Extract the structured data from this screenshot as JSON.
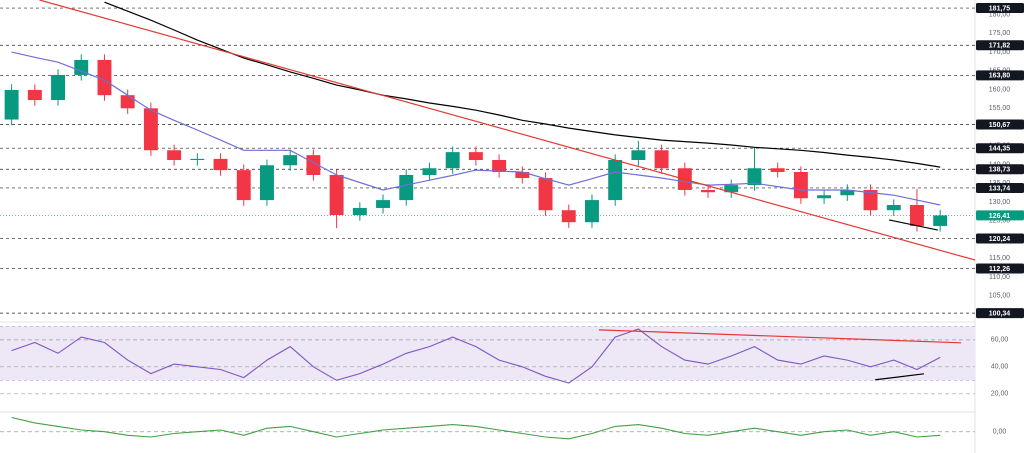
{
  "chart_data": [
    {
      "type": "candlestick",
      "xlim": [
        -0.5,
        41.5
      ],
      "ylim": [
        98.5,
        183.9
      ],
      "yticks": [
        {
          "value": 180,
          "label": "180,00"
        },
        {
          "value": 175,
          "label": "175,00"
        },
        {
          "value": 170,
          "label": "170,00"
        },
        {
          "value": 165,
          "label": "165,00"
        },
        {
          "value": 160,
          "label": "160,00"
        },
        {
          "value": 155,
          "label": "155,00"
        },
        {
          "value": 150,
          "label": "150,00"
        },
        {
          "value": 145,
          "label": "145,00"
        },
        {
          "value": 140,
          "label": "140,00"
        },
        {
          "value": 135,
          "label": "135,00"
        },
        {
          "value": 130,
          "label": "130,00"
        },
        {
          "value": 125,
          "label": "125,00"
        },
        {
          "value": 120,
          "label": "120,00"
        },
        {
          "value": 115,
          "label": "115,00"
        },
        {
          "value": 110,
          "label": "110,00"
        },
        {
          "value": 105,
          "label": "105,00"
        }
      ],
      "grid": false,
      "levels": [
        {
          "value": 181.75,
          "label": "181,75"
        },
        {
          "value": 171.82,
          "label": "171,82"
        },
        {
          "value": 163.8,
          "label": "163,80"
        },
        {
          "value": 150.67,
          "label": "150,67"
        },
        {
          "value": 144.35,
          "label": "144,35"
        },
        {
          "value": 138.73,
          "label": "138,73"
        },
        {
          "value": 133.74,
          "label": "133,74"
        },
        {
          "value": 120.24,
          "label": "120,24"
        },
        {
          "value": 112.26,
          "label": "112,26"
        },
        {
          "value": 100.34,
          "label": "100,34"
        }
      ],
      "last_price": {
        "value": 126.41,
        "label": "126,41"
      },
      "last_price_color": "#089981",
      "up_color": "#089981",
      "down_color": "#f23645",
      "open": [
        152.0,
        159.9,
        157.2,
        163.9,
        167.9,
        158.5,
        155.0,
        143.8,
        141.2,
        141.5,
        138.5,
        130.5,
        139.8,
        142.5,
        137.2,
        126.5,
        128.4,
        130.5,
        137.2,
        139.0,
        143.3,
        141.2,
        138.0,
        136.4,
        127.8,
        124.6,
        130.5,
        141.2,
        143.8,
        139.0,
        133.2,
        132.6,
        134.5,
        139.0,
        138.0,
        131.0,
        131.8,
        133.2,
        127.8,
        129.2,
        123.6
      ],
      "high": [
        161.4,
        161.4,
        165.4,
        169.4,
        169.4,
        160.0,
        156.5,
        145.3,
        143.0,
        143.0,
        140.0,
        141.3,
        144.0,
        144.0,
        138.7,
        129.9,
        132.0,
        138.7,
        140.5,
        144.8,
        144.8,
        142.7,
        139.5,
        137.9,
        129.3,
        132.0,
        142.7,
        146.3,
        145.3,
        140.5,
        134.7,
        136.0,
        144.5,
        140.5,
        139.5,
        133.3,
        134.7,
        134.7,
        130.7,
        133.5,
        127.9
      ],
      "low": [
        150.5,
        155.7,
        155.7,
        162.4,
        157.0,
        153.5,
        142.3,
        139.7,
        139.7,
        137.0,
        129.0,
        129.0,
        138.3,
        135.7,
        123.0,
        125.0,
        126.9,
        129.0,
        135.7,
        137.5,
        139.7,
        136.5,
        134.9,
        126.3,
        123.1,
        123.1,
        129.0,
        139.7,
        137.5,
        131.7,
        131.1,
        131.1,
        133.0,
        136.5,
        129.5,
        129.5,
        130.3,
        126.3,
        126.3,
        122.1,
        122.1
      ],
      "close": [
        159.9,
        157.2,
        163.9,
        167.9,
        158.5,
        155.0,
        143.8,
        141.2,
        141.5,
        138.5,
        130.5,
        139.8,
        142.5,
        137.2,
        126.5,
        128.4,
        130.5,
        137.2,
        139.0,
        143.3,
        141.2,
        138.0,
        136.4,
        127.8,
        124.6,
        130.5,
        141.2,
        143.8,
        139.0,
        133.2,
        132.6,
        134.5,
        139.0,
        138.0,
        131.0,
        131.8,
        133.2,
        127.8,
        129.2,
        123.6,
        126.41
      ],
      "series": [
        {
          "color": "#6f6fd8",
          "values": [
            170.0,
            168.6,
            167.3,
            164.9,
            162.5,
            158.5,
            154.5,
            151.8,
            149.2,
            146.5,
            143.8,
            143.8,
            143.8,
            140.5,
            137.2,
            135.2,
            133.2,
            134.5,
            135.8,
            137.1,
            138.5,
            138.2,
            138.0,
            136.2,
            134.5,
            136.2,
            138.0,
            137.2,
            136.4,
            135.4,
            134.5,
            134.7,
            135.0,
            134.1,
            133.2,
            133.2,
            133.2,
            132.5,
            131.8,
            130.5,
            129.2
          ]
        },
        {
          "color": "#000000",
          "values": [
            null,
            null,
            null,
            null,
            183.3,
            180.9,
            178.5,
            175.9,
            173.2,
            170.8,
            168.4,
            166.6,
            164.7,
            163.0,
            161.2,
            159.9,
            158.5,
            157.5,
            156.4,
            155.5,
            154.5,
            153.2,
            151.8,
            150.8,
            149.7,
            148.8,
            147.9,
            147.2,
            146.5,
            146.1,
            145.7,
            145.2,
            144.6,
            144.2,
            143.8,
            143.2,
            142.5,
            141.9,
            141.2,
            140.3,
            139.3
          ]
        }
      ],
      "trendlines": [
        {
          "color": "#e53935",
          "x": [
            1.2,
            41.5
          ],
          "y": [
            183.9,
            114.5
          ]
        },
        {
          "color": "#000000",
          "x": [
            37.8,
            39.9
          ],
          "y": [
            125.2,
            122.5
          ]
        }
      ]
    },
    {
      "type": "line",
      "xlim": [
        -0.5,
        41.5
      ],
      "ylim": [
        8,
        71
      ],
      "yticks": [
        {
          "value": 60,
          "label": "60,00"
        },
        {
          "value": 40,
          "label": "40,00"
        },
        {
          "value": 20,
          "label": "20,00"
        }
      ],
      "grid": true,
      "band": [
        30,
        70
      ],
      "band_color": "#ede7f6",
      "series": [
        {
          "color": "#7e57c2",
          "values": [
            52,
            58,
            50,
            62,
            58,
            45,
            35,
            42,
            40,
            38,
            32,
            45,
            55,
            40,
            30,
            35,
            42,
            50,
            55,
            62,
            55,
            45,
            40,
            33,
            28,
            40,
            62,
            68,
            55,
            45,
            42,
            48,
            55,
            45,
            42,
            48,
            45,
            40,
            45,
            38,
            47
          ]
        }
      ],
      "trendlines": [
        {
          "color": "#e53935",
          "x": [
            25.3,
            40.9
          ],
          "y": [
            67.4,
            57.8
          ]
        },
        {
          "color": "#000000",
          "x": [
            37.2,
            39.3
          ],
          "y": [
            30.4,
            34.8
          ]
        }
      ]
    },
    {
      "type": "line",
      "xlim": [
        -0.5,
        41.5
      ],
      "ylim": [
        -1.2,
        1.0
      ],
      "yticks": [
        {
          "value": 0,
          "label": "0,00"
        }
      ],
      "grid": true,
      "series": [
        {
          "color": "#43a047",
          "values": [
            0.8,
            0.5,
            0.3,
            0.1,
            0.0,
            -0.2,
            -0.3,
            -0.1,
            0.0,
            0.1,
            -0.2,
            0.2,
            0.3,
            0.0,
            -0.3,
            -0.1,
            0.1,
            0.2,
            0.3,
            0.4,
            0.3,
            0.1,
            -0.1,
            -0.3,
            -0.4,
            -0.1,
            0.3,
            0.4,
            0.2,
            -0.1,
            -0.2,
            0.0,
            0.2,
            0.0,
            -0.2,
            0.0,
            0.1,
            -0.2,
            0.0,
            -0.3,
            -0.2
          ]
        }
      ],
      "trendlines": []
    }
  ]
}
